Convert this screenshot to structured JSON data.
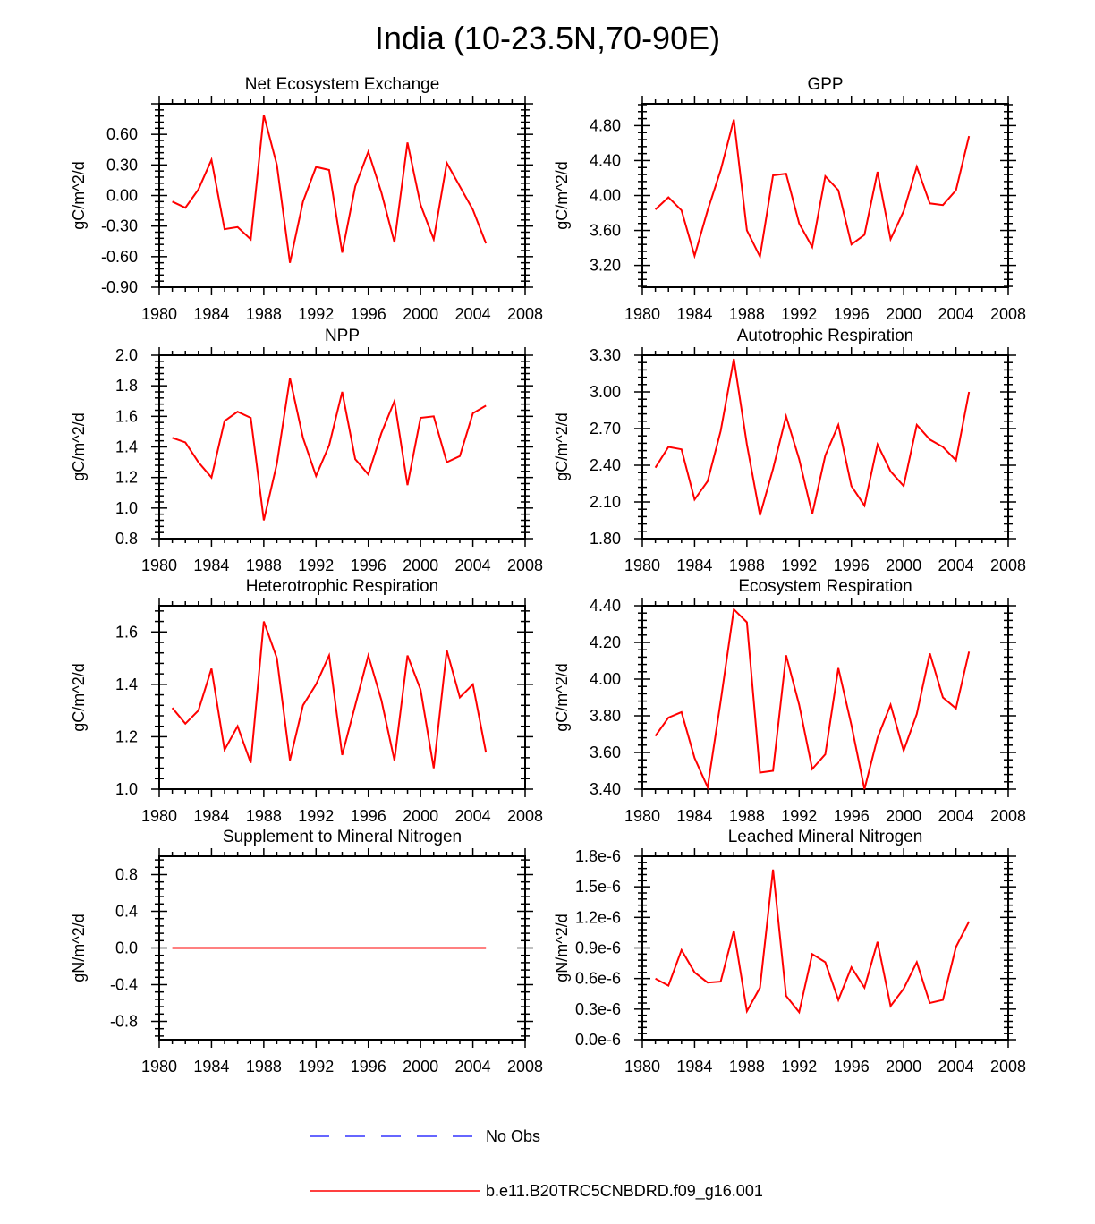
{
  "figure": {
    "title": "India (10-23.5N,70-90E)"
  },
  "legend": {
    "entries": [
      {
        "label": "No Obs",
        "style": "dashed",
        "color": "#3333ff"
      },
      {
        "label": "b.e11.B20TRC5CNBDRD.f09_g16.001",
        "style": "solid",
        "color": "#ff0000"
      }
    ]
  },
  "chart_data": [
    {
      "type": "line",
      "title": "Net Ecosystem Exchange",
      "ylabel": "gC/m^2/d",
      "xlim": [
        1980,
        2008
      ],
      "xticks": [
        "1980",
        "1984",
        "1988",
        "1992",
        "1996",
        "2000",
        "2004",
        "2008"
      ],
      "ylim": [
        -0.9,
        0.9
      ],
      "yticks": [
        "-0.90",
        "-0.60",
        "-0.30",
        "0.00",
        "0.30",
        "0.60"
      ],
      "ytick_values": [
        -0.9,
        -0.6,
        -0.3,
        0.0,
        0.3,
        0.6
      ],
      "grid": false,
      "series": [
        {
          "name": "b.e11.B20TRC5CNBDRD.f09_g16.001",
          "color": "#ff0000",
          "x": [
            1981,
            1982,
            1983,
            1984,
            1985,
            1986,
            1987,
            1988,
            1989,
            1990,
            1991,
            1992,
            1993,
            1994,
            1995,
            1996,
            1997,
            1998,
            1999,
            2000,
            2001,
            2002,
            2003,
            2004,
            2005
          ],
          "values": [
            -0.06,
            -0.12,
            0.06,
            0.35,
            -0.33,
            -0.31,
            -0.43,
            0.79,
            0.3,
            -0.66,
            -0.06,
            0.28,
            0.25,
            -0.56,
            0.09,
            0.43,
            0.03,
            -0.46,
            0.52,
            -0.09,
            -0.43,
            0.32,
            0.09,
            -0.14,
            -0.47
          ]
        }
      ]
    },
    {
      "type": "line",
      "title": "GPP",
      "ylabel": "gC/m^2/d",
      "xlim": [
        1980,
        2008
      ],
      "xticks": [
        "1980",
        "1984",
        "1988",
        "1992",
        "1996",
        "2000",
        "2004",
        "2008"
      ],
      "ylim": [
        2.95,
        5.05
      ],
      "yticks": [
        "3.20",
        "3.60",
        "4.00",
        "4.40",
        "4.80"
      ],
      "ytick_values": [
        3.2,
        3.6,
        4.0,
        4.4,
        4.8
      ],
      "grid": false,
      "series": [
        {
          "name": "b.e11.B20TRC5CNBDRD.f09_g16.001",
          "color": "#ff0000",
          "x": [
            1981,
            1982,
            1983,
            1984,
            1985,
            1986,
            1987,
            1988,
            1989,
            1990,
            1991,
            1992,
            1993,
            1994,
            1995,
            1996,
            1997,
            1998,
            1999,
            2000,
            2001,
            2002,
            2003,
            2004,
            2005
          ],
          "values": [
            3.84,
            3.98,
            3.83,
            3.31,
            3.83,
            4.29,
            4.87,
            3.6,
            3.3,
            4.23,
            4.25,
            3.68,
            3.41,
            4.22,
            4.06,
            3.44,
            3.55,
            4.27,
            3.5,
            3.82,
            4.33,
            3.91,
            3.89,
            4.06,
            4.68
          ]
        }
      ]
    },
    {
      "type": "line",
      "title": "NPP",
      "ylabel": "gC/m^2/d",
      "xlim": [
        1980,
        2008
      ],
      "xticks": [
        "1980",
        "1984",
        "1988",
        "1992",
        "1996",
        "2000",
        "2004",
        "2008"
      ],
      "ylim": [
        0.8,
        2.0
      ],
      "yticks": [
        "0.8",
        "1.0",
        "1.2",
        "1.4",
        "1.6",
        "1.8",
        "2.0"
      ],
      "ytick_values": [
        0.8,
        1.0,
        1.2,
        1.4,
        1.6,
        1.8,
        2.0
      ],
      "grid": false,
      "series": [
        {
          "name": "b.e11.B20TRC5CNBDRD.f09_g16.001",
          "color": "#ff0000",
          "x": [
            1981,
            1982,
            1983,
            1984,
            1985,
            1986,
            1987,
            1988,
            1989,
            1990,
            1991,
            1992,
            1993,
            1994,
            1995,
            1996,
            1997,
            1998,
            1999,
            2000,
            2001,
            2002,
            2003,
            2004,
            2005
          ],
          "values": [
            1.46,
            1.43,
            1.3,
            1.2,
            1.57,
            1.63,
            1.59,
            0.92,
            1.29,
            1.85,
            1.46,
            1.21,
            1.41,
            1.76,
            1.32,
            1.22,
            1.49,
            1.7,
            1.15,
            1.59,
            1.6,
            1.3,
            1.34,
            1.62,
            1.67
          ]
        }
      ]
    },
    {
      "type": "line",
      "title": "Autotrophic Respiration",
      "ylabel": "gC/m^2/d",
      "xlim": [
        1980,
        2008
      ],
      "xticks": [
        "1980",
        "1984",
        "1988",
        "1992",
        "1996",
        "2000",
        "2004",
        "2008"
      ],
      "ylim": [
        1.8,
        3.3
      ],
      "yticks": [
        "1.80",
        "2.10",
        "2.40",
        "2.70",
        "3.00",
        "3.30"
      ],
      "ytick_values": [
        1.8,
        2.1,
        2.4,
        2.7,
        3.0,
        3.3
      ],
      "grid": false,
      "series": [
        {
          "name": "b.e11.B20TRC5CNBDRD.f09_g16.001",
          "color": "#ff0000",
          "x": [
            1981,
            1982,
            1983,
            1984,
            1985,
            1986,
            1987,
            1988,
            1989,
            1990,
            1991,
            1992,
            1993,
            1994,
            1995,
            1996,
            1997,
            1998,
            1999,
            2000,
            2001,
            2002,
            2003,
            2004,
            2005
          ],
          "values": [
            2.38,
            2.55,
            2.53,
            2.12,
            2.27,
            2.68,
            3.27,
            2.57,
            1.99,
            2.37,
            2.8,
            2.45,
            2.0,
            2.48,
            2.73,
            2.23,
            2.07,
            2.57,
            2.35,
            2.23,
            2.73,
            2.61,
            2.55,
            2.44,
            3.0
          ]
        }
      ]
    },
    {
      "type": "line",
      "title": "Heterotrophic Respiration",
      "ylabel": "gC/m^2/d",
      "xlim": [
        1980,
        2008
      ],
      "xticks": [
        "1980",
        "1984",
        "1988",
        "1992",
        "1996",
        "2000",
        "2004",
        "2008"
      ],
      "ylim": [
        1.0,
        1.7
      ],
      "yticks": [
        "1.0",
        "1.2",
        "1.4",
        "1.6"
      ],
      "ytick_values": [
        1.0,
        1.2,
        1.4,
        1.6
      ],
      "grid": false,
      "series": [
        {
          "name": "b.e11.B20TRC5CNBDRD.f09_g16.001",
          "color": "#ff0000",
          "x": [
            1981,
            1982,
            1983,
            1984,
            1985,
            1986,
            1987,
            1988,
            1989,
            1990,
            1991,
            1992,
            1993,
            1994,
            1995,
            1996,
            1997,
            1998,
            1999,
            2000,
            2001,
            2002,
            2003,
            2004,
            2005
          ],
          "values": [
            1.31,
            1.25,
            1.3,
            1.46,
            1.15,
            1.24,
            1.1,
            1.64,
            1.5,
            1.11,
            1.32,
            1.4,
            1.51,
            1.13,
            1.32,
            1.51,
            1.34,
            1.11,
            1.51,
            1.38,
            1.08,
            1.53,
            1.35,
            1.4,
            1.14
          ]
        }
      ]
    },
    {
      "type": "line",
      "title": "Ecosystem Respiration",
      "ylabel": "gC/m^2/d",
      "xlim": [
        1980,
        2008
      ],
      "xticks": [
        "1980",
        "1984",
        "1988",
        "1992",
        "1996",
        "2000",
        "2004",
        "2008"
      ],
      "ylim": [
        3.4,
        4.4
      ],
      "yticks": [
        "3.40",
        "3.60",
        "3.80",
        "4.00",
        "4.20",
        "4.40"
      ],
      "ytick_values": [
        3.4,
        3.6,
        3.8,
        4.0,
        4.2,
        4.4
      ],
      "grid": false,
      "series": [
        {
          "name": "b.e11.B20TRC5CNBDRD.f09_g16.001",
          "color": "#ff0000",
          "x": [
            1981,
            1982,
            1983,
            1984,
            1985,
            1986,
            1987,
            1988,
            1989,
            1990,
            1991,
            1992,
            1993,
            1994,
            1995,
            1996,
            1997,
            1998,
            1999,
            2000,
            2001,
            2002,
            2003,
            2004,
            2005
          ],
          "values": [
            3.69,
            3.79,
            3.82,
            3.57,
            3.41,
            3.88,
            4.38,
            4.31,
            3.49,
            3.5,
            4.13,
            3.86,
            3.51,
            3.59,
            4.06,
            3.75,
            3.4,
            3.68,
            3.86,
            3.61,
            3.81,
            4.14,
            3.9,
            3.84,
            4.15
          ]
        }
      ]
    },
    {
      "type": "line",
      "title": "Supplement to Mineral Nitrogen",
      "ylabel": "gN/m^2/d",
      "xlim": [
        1980,
        2008
      ],
      "xticks": [
        "1980",
        "1984",
        "1988",
        "1992",
        "1996",
        "2000",
        "2004",
        "2008"
      ],
      "ylim": [
        -1.0,
        1.0
      ],
      "yticks": [
        "-0.8",
        "-0.4",
        "0.0",
        "0.4",
        "0.8"
      ],
      "ytick_values": [
        -0.8,
        -0.4,
        0.0,
        0.4,
        0.8
      ],
      "grid": false,
      "series": [
        {
          "name": "b.e11.B20TRC5CNBDRD.f09_g16.001",
          "color": "#ff0000",
          "x": [
            1981,
            2005
          ],
          "values": [
            0.0,
            0.0
          ]
        }
      ]
    },
    {
      "type": "line",
      "title": "Leached Mineral Nitrogen",
      "ylabel": "gN/m^2/d",
      "xlim": [
        1980,
        2008
      ],
      "xticks": [
        "1980",
        "1984",
        "1988",
        "1992",
        "1996",
        "2000",
        "2004",
        "2008"
      ],
      "ylim": [
        0.0,
        1.8e-06
      ],
      "yticks": [
        "0.0e-6",
        "0.3e-6",
        "0.6e-6",
        "0.9e-6",
        "1.2e-6",
        "1.5e-6",
        "1.8e-6"
      ],
      "ytick_values": [
        0.0,
        3e-07,
        6e-07,
        9e-07,
        1.2e-06,
        1.5e-06,
        1.8e-06
      ],
      "grid": false,
      "series": [
        {
          "name": "b.e11.B20TRC5CNBDRD.f09_g16.001",
          "color": "#ff0000",
          "x": [
            1981,
            1982,
            1983,
            1984,
            1985,
            1986,
            1987,
            1988,
            1989,
            1990,
            1991,
            1992,
            1993,
            1994,
            1995,
            1996,
            1997,
            1998,
            1999,
            2000,
            2001,
            2002,
            2003,
            2004,
            2005
          ],
          "values": [
            6e-07,
            5.3e-07,
            8.8e-07,
            6.6e-07,
            5.6e-07,
            5.7e-07,
            1.07e-06,
            2.8e-07,
            5.1e-07,
            1.67e-06,
            4.3e-07,
            2.7e-07,
            8.4e-07,
            7.6e-07,
            3.9e-07,
            7.1e-07,
            5.1e-07,
            9.6e-07,
            3.3e-07,
            5e-07,
            7.6e-07,
            3.6e-07,
            3.9e-07,
            9.1e-07,
            1.16e-06
          ]
        }
      ]
    }
  ]
}
